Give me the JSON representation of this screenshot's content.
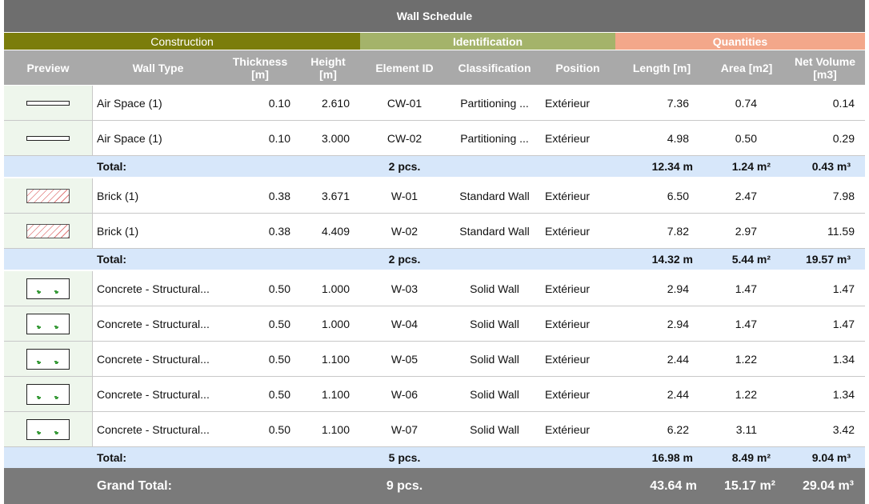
{
  "title": "Wall Schedule",
  "groups": {
    "construction": "Construction",
    "identification": "Identification",
    "quantities": "Quantities"
  },
  "headers": {
    "preview": "Preview",
    "wall_type": "Wall Type",
    "thickness": "Thickness\n[m]",
    "height": "Height\n[m]",
    "element_id": "Element ID",
    "classification": "Classification",
    "position": "Position",
    "length": "Length [m]",
    "area": "Area [m2]",
    "net_volume": "Net Volume\n[m3]"
  },
  "total_label": "Total:",
  "sections": [
    {
      "swatch": "air",
      "rows": [
        {
          "wall_type": "Air Space (1)",
          "thickness": "0.10",
          "height": "2.610",
          "element_id": "CW-01",
          "classification": "Partitioning ...",
          "position": "Extérieur",
          "length": "7.36",
          "area": "0.74",
          "volume": "0.14"
        },
        {
          "wall_type": "Air Space (1)",
          "thickness": "0.10",
          "height": "3.000",
          "element_id": "CW-02",
          "classification": "Partitioning ...",
          "position": "Extérieur",
          "length": "4.98",
          "area": "0.50",
          "volume": "0.29"
        }
      ],
      "total": {
        "count": "2 pcs.",
        "length": "12.34 m",
        "area": "1.24 m²",
        "volume": "0.43 m³"
      }
    },
    {
      "swatch": "brick",
      "rows": [
        {
          "wall_type": "Brick (1)",
          "thickness": "0.38",
          "height": "3.671",
          "element_id": "W-01",
          "classification": "Standard Wall",
          "position": "Extérieur",
          "length": "6.50",
          "area": "2.47",
          "volume": "7.98"
        },
        {
          "wall_type": "Brick (1)",
          "thickness": "0.38",
          "height": "4.409",
          "element_id": "W-02",
          "classification": "Standard Wall",
          "position": "Extérieur",
          "length": "7.82",
          "area": "2.97",
          "volume": "11.59"
        }
      ],
      "total": {
        "count": "2 pcs.",
        "length": "14.32 m",
        "area": "5.44 m²",
        "volume": "19.57 m³"
      }
    },
    {
      "swatch": "concrete",
      "rows": [
        {
          "wall_type": "Concrete - Structural...",
          "thickness": "0.50",
          "height": "1.000",
          "element_id": "W-03",
          "classification": "Solid Wall",
          "position": "Extérieur",
          "length": "2.94",
          "area": "1.47",
          "volume": "1.47"
        },
        {
          "wall_type": "Concrete - Structural...",
          "thickness": "0.50",
          "height": "1.000",
          "element_id": "W-04",
          "classification": "Solid Wall",
          "position": "Extérieur",
          "length": "2.94",
          "area": "1.47",
          "volume": "1.47"
        },
        {
          "wall_type": "Concrete - Structural...",
          "thickness": "0.50",
          "height": "1.100",
          "element_id": "W-05",
          "classification": "Solid Wall",
          "position": "Extérieur",
          "length": "2.44",
          "area": "1.22",
          "volume": "1.34"
        },
        {
          "wall_type": "Concrete - Structural...",
          "thickness": "0.50",
          "height": "1.100",
          "element_id": "W-06",
          "classification": "Solid Wall",
          "position": "Extérieur",
          "length": "2.44",
          "area": "1.22",
          "volume": "1.34"
        },
        {
          "wall_type": "Concrete - Structural...",
          "thickness": "0.50",
          "height": "1.100",
          "element_id": "W-07",
          "classification": "Solid Wall",
          "position": "Extérieur",
          "length": "6.22",
          "area": "3.11",
          "volume": "3.42"
        }
      ],
      "total": {
        "count": "5 pcs.",
        "length": "16.98 m",
        "area": "8.49 m²",
        "volume": "9.04 m³"
      }
    }
  ],
  "grand_total": {
    "label": "Grand Total:",
    "count": "9 pcs.",
    "length": "43.64 m",
    "area": "15.17 m²",
    "volume": "29.04 m³"
  },
  "colors": {
    "title_bg": "#6e6e6e",
    "construction": "#7b7d0b",
    "identification": "#a4b36a",
    "quantities": "#f3a78a",
    "header_bg": "#a9a9a9",
    "total_bg": "#d7e7fa",
    "grand_bg": "#7a7a7a"
  }
}
